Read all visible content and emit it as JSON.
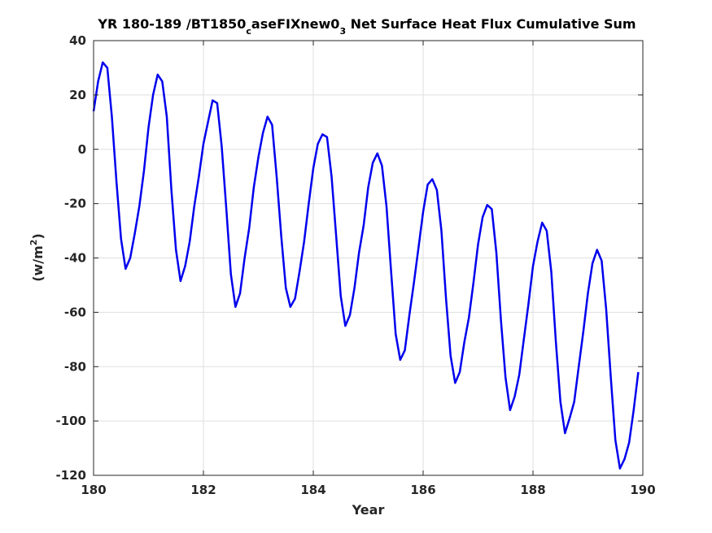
{
  "chart_data": {
    "type": "line",
    "title": {
      "part1": "YR 180-189 /BT1850",
      "sub1": "c",
      "part2": "aseFIXnew0",
      "sub2": "3",
      "part3": " Net Surface Heat Flux  Cumulative Sum"
    },
    "xlabel": "Year",
    "ylabel": {
      "main": "(w/m",
      "sup": "2",
      "close": ")"
    },
    "xlim": [
      180,
      190
    ],
    "ylim": [
      -120,
      40
    ],
    "xticks": [
      "180",
      "182",
      "184",
      "186",
      "188",
      "190"
    ],
    "yticks": [
      "40",
      "20",
      "0",
      "-20",
      "-40",
      "-60",
      "-80",
      "-100",
      "-120"
    ],
    "grid": true,
    "colors": {
      "line": "#0000ee",
      "grid": "#dfdfdf",
      "axis": "#262626"
    },
    "series": [
      {
        "x": [
          180.0,
          180.083,
          180.167,
          180.25,
          180.333,
          180.417,
          180.5,
          180.583,
          180.667,
          180.75,
          180.833,
          180.917,
          181.0,
          181.083,
          181.167,
          181.25,
          181.333,
          181.417,
          181.5,
          181.583,
          181.667,
          181.75,
          181.833,
          181.917,
          182.0,
          182.083,
          182.167,
          182.25,
          182.333,
          182.417,
          182.5,
          182.583,
          182.667,
          182.75,
          182.833,
          182.917,
          183.0,
          183.083,
          183.167,
          183.25,
          183.333,
          183.417,
          183.5,
          183.583,
          183.667,
          183.75,
          183.833,
          183.917,
          184.0,
          184.083,
          184.167,
          184.25,
          184.333,
          184.417,
          184.5,
          184.583,
          184.667,
          184.75,
          184.833,
          184.917,
          185.0,
          185.083,
          185.167,
          185.25,
          185.333,
          185.417,
          185.5,
          185.583,
          185.667,
          185.75,
          185.833,
          185.917,
          186.0,
          186.083,
          186.167,
          186.25,
          186.333,
          186.417,
          186.5,
          186.583,
          186.667,
          186.75,
          186.833,
          186.917,
          187.0,
          187.083,
          187.167,
          187.25,
          187.333,
          187.417,
          187.5,
          187.583,
          187.667,
          187.75,
          187.833,
          187.917,
          188.0,
          188.083,
          188.167,
          188.25,
          188.333,
          188.417,
          188.5,
          188.583,
          188.667,
          188.75,
          188.833,
          188.917,
          189.0,
          189.083,
          189.167,
          189.25,
          189.333,
          189.417,
          189.5,
          189.583,
          189.667,
          189.75,
          189.833,
          189.917
        ],
        "y": [
          14,
          25,
          32,
          30,
          12,
          -12,
          -33,
          -44,
          -40,
          -31,
          -21,
          -8,
          8,
          20,
          27.5,
          25,
          12,
          -15,
          -37,
          -48.5,
          -43,
          -34,
          -21,
          -10,
          2,
          10,
          18,
          17,
          1,
          -22,
          -46,
          -58,
          -53,
          -40,
          -29,
          -14,
          -3,
          6,
          12,
          9,
          -10,
          -32,
          -51,
          -58,
          -55,
          -45,
          -34,
          -20,
          -7,
          2,
          5.5,
          4.5,
          -10,
          -32,
          -54,
          -65,
          -61,
          -51,
          -38,
          -28,
          -14,
          -5,
          -1.5,
          -6,
          -21,
          -45,
          -68,
          -77.5,
          -74,
          -61,
          -49,
          -36,
          -23,
          -13,
          -11,
          -15,
          -30,
          -55,
          -76,
          -86,
          -82,
          -71,
          -62,
          -49,
          -35,
          -25,
          -20.5,
          -22,
          -38,
          -63,
          -84,
          -96,
          -91,
          -83,
          -70,
          -57,
          -43,
          -34,
          -27,
          -30,
          -45,
          -71,
          -93,
          -104.5,
          -99,
          -93,
          -80,
          -67,
          -53,
          -42,
          -37,
          -41,
          -59,
          -84,
          -107,
          -117.5,
          -114,
          -108,
          -96,
          -82
        ]
      }
    ]
  }
}
